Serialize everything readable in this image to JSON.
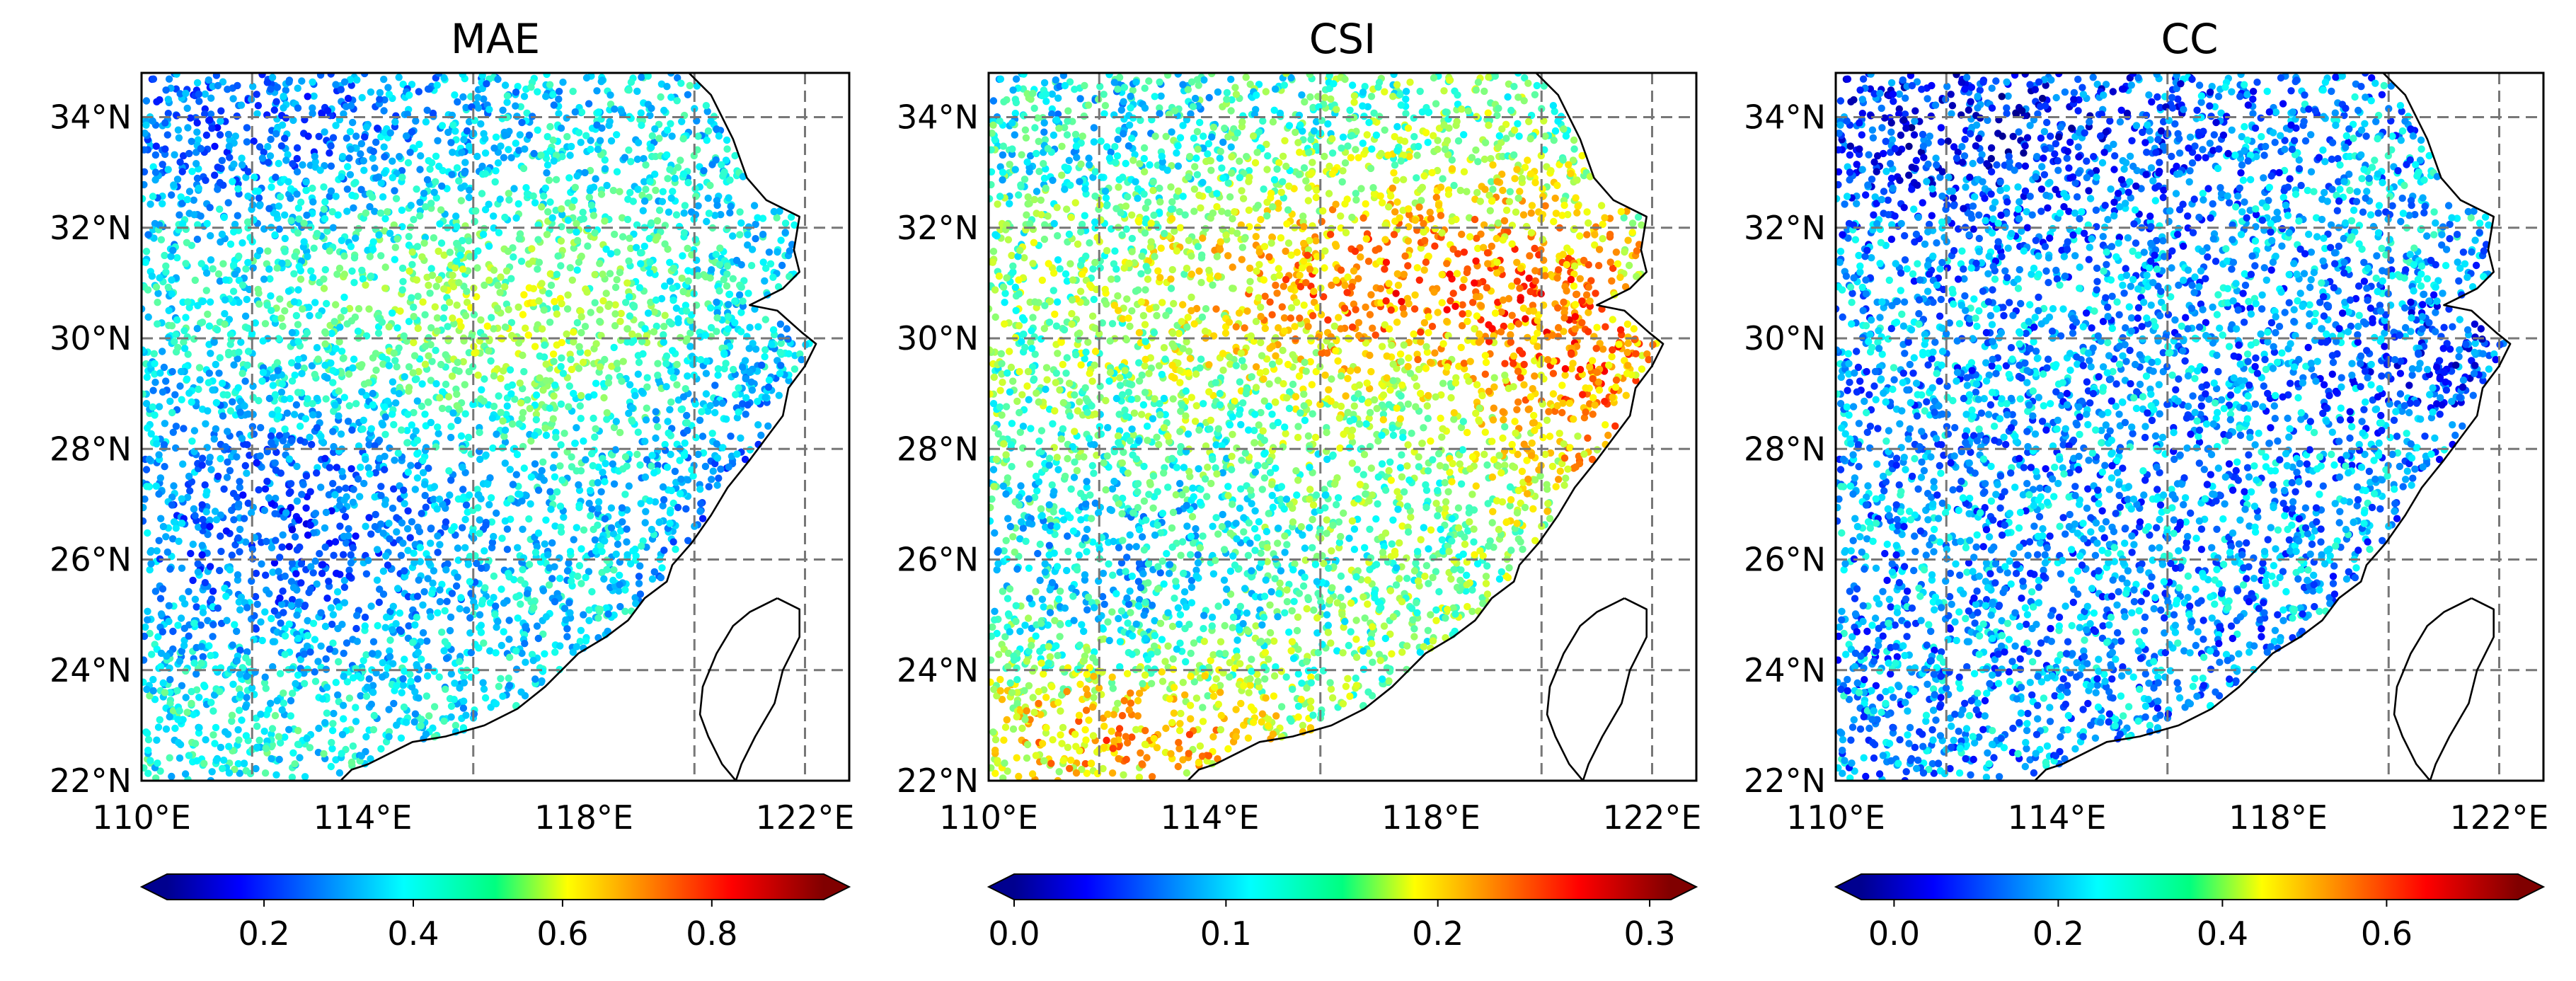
{
  "figure": {
    "panels": [
      {
        "title": "MAE",
        "colorbar": {
          "vmin": 0.07,
          "vmax": 0.95,
          "ticks": [
            "0.2",
            "0.4",
            "0.6",
            "0.8"
          ],
          "tick_values": [
            0.2,
            0.4,
            0.6,
            0.8
          ],
          "extend": "both",
          "colormap": "jet"
        }
      },
      {
        "title": "CSI",
        "colorbar": {
          "vmin": 0.0,
          "vmax": 0.31,
          "ticks": [
            "0.0",
            "0.1",
            "0.2",
            "0.3"
          ],
          "tick_values": [
            0.0,
            0.1,
            0.2,
            0.3
          ],
          "extend": "both",
          "colormap": "jet"
        }
      },
      {
        "title": "CC",
        "colorbar": {
          "vmin": -0.04,
          "vmax": 0.76,
          "ticks": [
            "0.0",
            "0.2",
            "0.4",
            "0.6"
          ],
          "tick_values": [
            0.0,
            0.2,
            0.4,
            0.6
          ],
          "extend": "both",
          "colormap": "jet"
        }
      }
    ],
    "map_extent": {
      "lon_min": 110,
      "lon_max": 122.8,
      "lat_min": 22,
      "lat_max": 34.8
    },
    "gridlines": {
      "lon": [
        112,
        116,
        120,
        122
      ],
      "lat": [
        24,
        26,
        28,
        30,
        32,
        34
      ]
    },
    "lon_ticks": [
      {
        "value": 110,
        "label": "110°E"
      },
      {
        "value": 114,
        "label": "114°E"
      },
      {
        "value": 118,
        "label": "118°E"
      },
      {
        "value": 122,
        "label": "122°E"
      }
    ],
    "lat_ticks": [
      {
        "value": 22,
        "label": "22°N"
      },
      {
        "value": 24,
        "label": "24°N"
      },
      {
        "value": 26,
        "label": "26°N"
      },
      {
        "value": 28,
        "label": "28°N"
      },
      {
        "value": 30,
        "label": "30°N"
      },
      {
        "value": 32,
        "label": "32°N"
      },
      {
        "value": 34,
        "label": "34°N"
      }
    ],
    "coastline": [
      [
        119.9,
        34.8
      ],
      [
        120.3,
        34.4
      ],
      [
        120.7,
        33.6
      ],
      [
        120.95,
        32.9
      ],
      [
        121.3,
        32.5
      ],
      [
        121.9,
        32.2
      ],
      [
        121.8,
        31.6
      ],
      [
        121.9,
        31.2
      ],
      [
        121.6,
        30.9
      ],
      [
        121.3,
        30.75
      ],
      [
        121.0,
        30.6
      ],
      [
        121.5,
        30.5
      ],
      [
        121.95,
        30.1
      ],
      [
        122.2,
        29.9
      ],
      [
        122.0,
        29.5
      ],
      [
        121.7,
        29.1
      ],
      [
        121.6,
        28.6
      ],
      [
        121.3,
        28.2
      ],
      [
        121.0,
        27.8
      ],
      [
        120.6,
        27.3
      ],
      [
        120.3,
        26.8
      ],
      [
        119.95,
        26.3
      ],
      [
        119.6,
        25.9
      ],
      [
        119.5,
        25.6
      ],
      [
        119.1,
        25.3
      ],
      [
        118.8,
        24.9
      ],
      [
        118.4,
        24.6
      ],
      [
        117.9,
        24.3
      ],
      [
        117.3,
        23.7
      ],
      [
        116.8,
        23.3
      ],
      [
        116.2,
        23.0
      ],
      [
        115.5,
        22.8
      ],
      [
        114.9,
        22.7
      ],
      [
        114.5,
        22.5
      ],
      [
        114.1,
        22.3
      ],
      [
        113.8,
        22.2
      ],
      [
        113.6,
        22.0
      ]
    ],
    "taiwan_outline": [
      [
        121.5,
        25.3
      ],
      [
        121.9,
        25.1
      ],
      [
        121.9,
        24.6
      ],
      [
        121.6,
        24.0
      ],
      [
        121.45,
        23.4
      ],
      [
        121.1,
        22.8
      ],
      [
        120.85,
        22.3
      ],
      [
        120.75,
        22.0
      ],
      [
        120.5,
        22.3
      ],
      [
        120.25,
        22.8
      ],
      [
        120.1,
        23.2
      ],
      [
        120.15,
        23.7
      ],
      [
        120.4,
        24.3
      ],
      [
        120.7,
        24.8
      ],
      [
        121.0,
        25.05
      ],
      [
        121.5,
        25.3
      ]
    ]
  }
}
